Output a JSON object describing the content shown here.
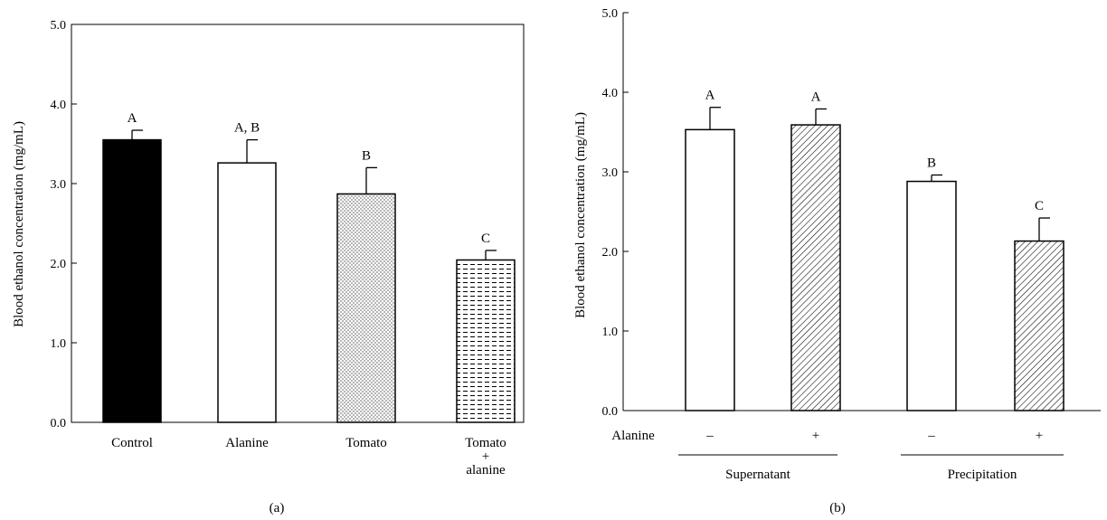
{
  "chart_data": [
    {
      "type": "bar",
      "panel_label": "(a)",
      "ylabel": "Blood ethanol concentration (mg/mL)",
      "ylim": [
        0,
        5
      ],
      "yticks": [
        "0.0",
        "1.0",
        "2.0",
        "3.0",
        "4.0",
        "5.0"
      ],
      "categories": [
        "Control",
        "Alanine",
        "Tomato",
        "Tomato + alanine"
      ],
      "category_lines": [
        [
          "Control"
        ],
        [
          "Alanine"
        ],
        [
          "Tomato"
        ],
        [
          "Tomato",
          "+",
          "alanine"
        ]
      ],
      "values": [
        3.55,
        3.26,
        2.87,
        2.04
      ],
      "errors": [
        0.12,
        0.29,
        0.33,
        0.12
      ],
      "significance": [
        "A",
        "A, B",
        "B",
        "C"
      ],
      "fills": [
        "solid-black",
        "white",
        "dots",
        "dashes"
      ],
      "grid": false
    },
    {
      "type": "bar",
      "panel_label": "(b)",
      "ylabel": "Blood ethanol concentration (mg/mL)",
      "ylim": [
        0,
        5
      ],
      "yticks": [
        "0.0",
        "1.0",
        "2.0",
        "3.0",
        "4.0",
        "5.0"
      ],
      "row_label": "Alanine",
      "categories": [
        "–",
        "+",
        "–",
        "+"
      ],
      "groups": [
        {
          "label": "Supernatant",
          "members": [
            0,
            1
          ]
        },
        {
          "label": "Precipitation",
          "members": [
            2,
            3
          ]
        }
      ],
      "values": [
        3.53,
        3.59,
        2.88,
        2.13
      ],
      "errors": [
        0.28,
        0.2,
        0.08,
        0.29
      ],
      "significance": [
        "A",
        "A",
        "B",
        "C"
      ],
      "fills": [
        "white",
        "hatch",
        "white",
        "hatch"
      ],
      "grid": false
    }
  ]
}
